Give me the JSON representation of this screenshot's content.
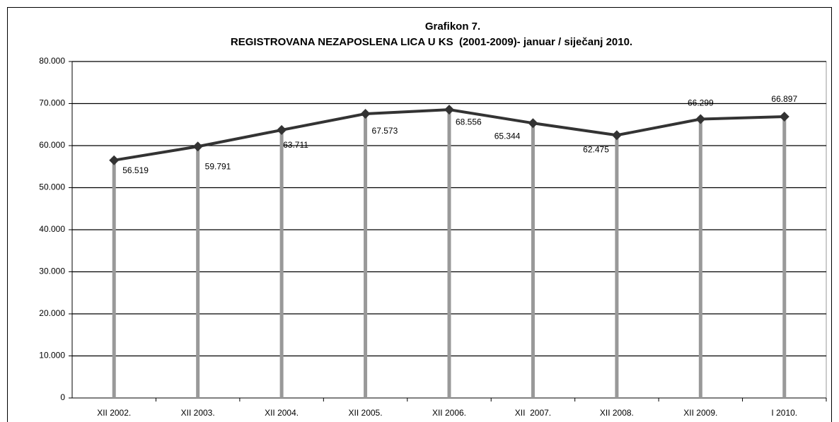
{
  "chart_data": {
    "type": "line",
    "title": "Grafikon 7.",
    "subtitle": "REGISTROVANA NEZAPOSLENA LICA U KS  (2001-2009)- januar / siječanj 2010.",
    "categories": [
      "XII 2002.",
      "XII 2003.",
      "XII 2004.",
      "XII 2005.",
      "XII 2006.",
      "XII  2007.",
      "XII 2008.",
      "XII 2009.",
      "I 2010."
    ],
    "series": [
      {
        "color": "#333333",
        "values": [
          56519,
          59791,
          63711,
          67573,
          68556,
          65344,
          62475,
          66299,
          66897
        ],
        "value_labels": [
          "56.519",
          "59.791",
          "63.711",
          "67.573",
          "68.556",
          "65.344",
          "62.475",
          "66.299",
          "66.897"
        ]
      }
    ],
    "drop_line_color": "#999999",
    "ylim": [
      0,
      80000
    ],
    "yticks": [
      0,
      {
        "value": 10000,
        "label": "10.000"
      },
      {
        "value": 20000,
        "label": "20.000"
      },
      {
        "value": 30000,
        "label": "30.000"
      },
      {
        "value": 40000,
        "label": "40.000"
      },
      {
        "value": 50000,
        "label": "50.000"
      },
      {
        "value": 60000,
        "label": "60.000"
      },
      {
        "value": 70000,
        "label": "70.000"
      },
      {
        "value": 80000,
        "label": "80.000"
      }
    ],
    "grid": true
  }
}
